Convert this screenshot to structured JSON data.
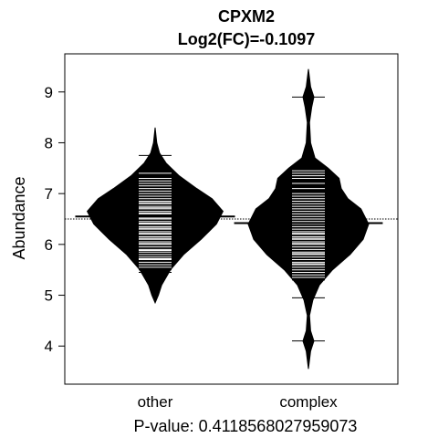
{
  "chart_data": {
    "type": "beanplot",
    "title": "CPXM2",
    "subtitle": "Log2(FC)=-0.1097",
    "ylabel": "Abundance",
    "xlabel": "P-value: 0.4118568027959073",
    "categories": [
      "other",
      "complex"
    ],
    "ylim": [
      3.25,
      9.75
    ],
    "yticks": [
      4,
      5,
      6,
      7,
      8,
      9
    ],
    "overall_mean": 6.5,
    "colors": {
      "fill": "#000000",
      "lines": "#ffffff",
      "background": "#ffffff"
    },
    "series": [
      {
        "name": "other",
        "mean": 6.55,
        "density": [
          [
            4.85,
            0.0
          ],
          [
            5.0,
            0.03
          ],
          [
            5.2,
            0.06
          ],
          [
            5.5,
            0.14
          ],
          [
            5.8,
            0.26
          ],
          [
            6.1,
            0.42
          ],
          [
            6.4,
            0.56
          ],
          [
            6.65,
            0.62
          ],
          [
            6.9,
            0.52
          ],
          [
            7.1,
            0.38
          ],
          [
            7.35,
            0.22
          ],
          [
            7.6,
            0.1
          ],
          [
            7.8,
            0.04
          ],
          [
            8.0,
            0.015
          ],
          [
            8.3,
            0.0
          ]
        ],
        "observations": [
          5.45,
          5.5,
          5.55,
          5.6,
          5.65,
          5.7,
          5.72,
          5.75,
          5.8,
          5.85,
          5.88,
          5.9,
          5.95,
          6.0,
          6.02,
          6.05,
          6.1,
          6.12,
          6.15,
          6.2,
          6.22,
          6.25,
          6.3,
          6.32,
          6.35,
          6.4,
          6.42,
          6.45,
          6.5,
          6.52,
          6.55,
          6.6,
          6.62,
          6.65,
          6.7,
          6.72,
          6.75,
          6.8,
          6.82,
          6.85,
          6.9,
          6.95,
          7.0,
          7.05,
          7.1,
          7.15,
          7.2,
          7.25,
          7.3,
          7.4,
          7.75
        ]
      },
      {
        "name": "complex",
        "mean": 6.42,
        "density": [
          [
            3.55,
            0.0
          ],
          [
            3.9,
            0.02
          ],
          [
            4.1,
            0.05
          ],
          [
            4.3,
            0.02
          ],
          [
            4.6,
            0.01
          ],
          [
            4.9,
            0.04
          ],
          [
            5.2,
            0.1
          ],
          [
            5.5,
            0.22
          ],
          [
            5.8,
            0.38
          ],
          [
            6.1,
            0.5
          ],
          [
            6.4,
            0.55
          ],
          [
            6.7,
            0.48
          ],
          [
            6.9,
            0.36
          ],
          [
            7.1,
            0.3
          ],
          [
            7.3,
            0.28
          ],
          [
            7.5,
            0.18
          ],
          [
            7.7,
            0.06
          ],
          [
            8.0,
            0.02
          ],
          [
            8.4,
            0.01
          ],
          [
            8.7,
            0.03
          ],
          [
            8.9,
            0.05
          ],
          [
            9.1,
            0.02
          ],
          [
            9.45,
            0.0
          ]
        ],
        "observations": [
          4.1,
          4.95,
          5.3,
          5.35,
          5.4,
          5.45,
          5.5,
          5.55,
          5.6,
          5.62,
          5.65,
          5.7,
          5.75,
          5.8,
          5.82,
          5.85,
          5.9,
          5.95,
          6.0,
          6.02,
          6.05,
          6.1,
          6.12,
          6.15,
          6.2,
          6.22,
          6.25,
          6.3,
          6.35,
          6.4,
          6.42,
          6.45,
          6.5,
          6.55,
          6.6,
          6.65,
          6.7,
          6.75,
          6.8,
          6.85,
          6.9,
          6.95,
          7.0,
          7.1,
          7.2,
          7.3,
          7.35,
          7.4,
          7.45,
          8.9
        ]
      }
    ]
  }
}
